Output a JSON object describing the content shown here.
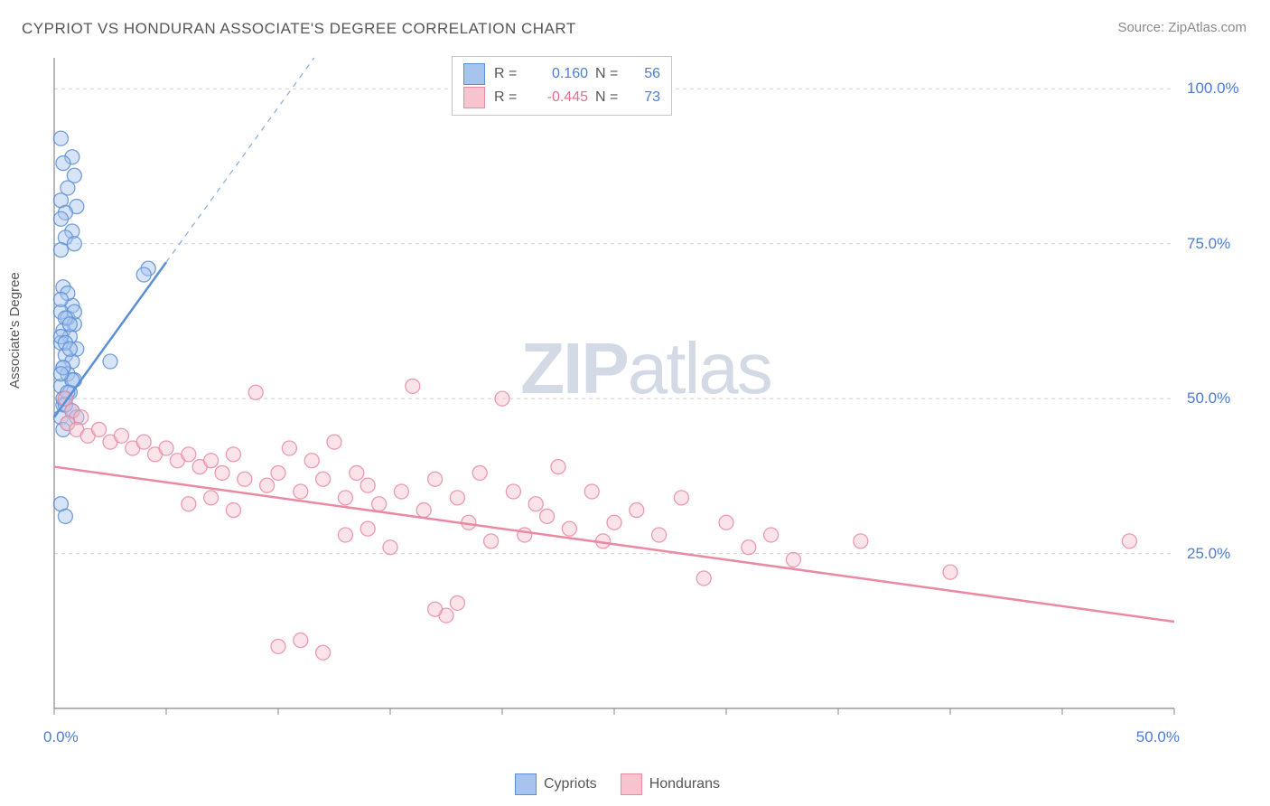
{
  "title": "CYPRIOT VS HONDURAN ASSOCIATE'S DEGREE CORRELATION CHART",
  "source": "Source: ZipAtlas.com",
  "ylabel": "Associate's Degree",
  "watermark_bold": "ZIP",
  "watermark_rest": "atlas",
  "chart": {
    "type": "scatter",
    "xlim": [
      0,
      50
    ],
    "ylim": [
      0,
      105
    ],
    "x_ticks": [
      0,
      5,
      10,
      15,
      20,
      25,
      30,
      35,
      40,
      45,
      50
    ],
    "x_tick_labels": {
      "0": "0.0%",
      "50": "50.0%"
    },
    "y_gridlines": [
      25,
      50,
      75,
      100
    ],
    "y_tick_labels": {
      "25": "25.0%",
      "50": "50.0%",
      "75": "75.0%",
      "100": "100.0%"
    },
    "grid_color": "#d0d0d0",
    "axis_color": "#888888",
    "tick_label_color": "#4a7cd8",
    "background_color": "#ffffff",
    "marker_radius": 8,
    "marker_opacity": 0.45,
    "series": [
      {
        "name": "Cypriots",
        "color_fill": "#a7c4ee",
        "color_stroke": "#5b8fd6",
        "R": "0.160",
        "N": "56",
        "trend": {
          "x1": 0,
          "y1": 47,
          "x2": 5,
          "y2": 72,
          "dashed_extend_to_x": 16,
          "dashed_extend_to_y": 127
        },
        "points": [
          [
            0.3,
            92
          ],
          [
            0.8,
            89
          ],
          [
            0.4,
            88
          ],
          [
            0.9,
            86
          ],
          [
            0.6,
            84
          ],
          [
            0.3,
            82
          ],
          [
            1.0,
            81
          ],
          [
            0.5,
            80
          ],
          [
            0.3,
            79
          ],
          [
            0.8,
            77
          ],
          [
            0.5,
            76
          ],
          [
            0.9,
            75
          ],
          [
            0.3,
            74
          ],
          [
            4.2,
            71
          ],
          [
            4.0,
            70
          ],
          [
            0.4,
            68
          ],
          [
            0.8,
            65
          ],
          [
            0.3,
            64
          ],
          [
            0.6,
            63
          ],
          [
            0.9,
            62
          ],
          [
            0.4,
            61
          ],
          [
            0.7,
            60
          ],
          [
            0.3,
            59
          ],
          [
            1.0,
            58
          ],
          [
            0.5,
            57
          ],
          [
            0.8,
            56
          ],
          [
            2.5,
            56
          ],
          [
            0.4,
            55
          ],
          [
            0.6,
            54
          ],
          [
            0.9,
            53
          ],
          [
            0.3,
            52
          ],
          [
            0.7,
            51
          ],
          [
            0.5,
            50
          ],
          [
            0.4,
            49
          ],
          [
            0.8,
            48
          ],
          [
            0.3,
            47
          ],
          [
            0.6,
            46
          ],
          [
            0.4,
            45
          ],
          [
            0.3,
            60
          ],
          [
            0.5,
            59
          ],
          [
            0.7,
            58
          ],
          [
            0.3,
            33
          ],
          [
            0.5,
            31
          ],
          [
            0.8,
            48
          ],
          [
            1.0,
            47
          ],
          [
            0.4,
            50
          ],
          [
            0.6,
            67
          ],
          [
            0.3,
            66
          ],
          [
            0.9,
            64
          ],
          [
            0.5,
            63
          ],
          [
            0.7,
            62
          ],
          [
            0.4,
            55
          ],
          [
            0.8,
            53
          ],
          [
            0.3,
            54
          ],
          [
            0.6,
            51
          ],
          [
            0.5,
            49
          ]
        ]
      },
      {
        "name": "Hondurans",
        "color_fill": "#f6c3cf",
        "color_stroke": "#e98aa2",
        "R": "-0.445",
        "N": "73",
        "trend": {
          "x1": 0,
          "y1": 39,
          "x2": 50,
          "y2": 14
        },
        "points": [
          [
            0.5,
            50
          ],
          [
            0.8,
            48
          ],
          [
            1.2,
            47
          ],
          [
            0.6,
            46
          ],
          [
            1.0,
            45
          ],
          [
            1.5,
            44
          ],
          [
            2.0,
            45
          ],
          [
            2.5,
            43
          ],
          [
            3.0,
            44
          ],
          [
            3.5,
            42
          ],
          [
            4.0,
            43
          ],
          [
            4.5,
            41
          ],
          [
            5.0,
            42
          ],
          [
            5.5,
            40
          ],
          [
            6.0,
            41
          ],
          [
            6.5,
            39
          ],
          [
            7.0,
            40
          ],
          [
            7.5,
            38
          ],
          [
            8.0,
            41
          ],
          [
            8.5,
            37
          ],
          [
            9.0,
            51
          ],
          [
            9.5,
            36
          ],
          [
            10.0,
            38
          ],
          [
            10.5,
            42
          ],
          [
            11.0,
            35
          ],
          [
            11.5,
            40
          ],
          [
            12.0,
            37
          ],
          [
            12.5,
            43
          ],
          [
            13.0,
            34
          ],
          [
            13.5,
            38
          ],
          [
            14.0,
            36
          ],
          [
            14.5,
            33
          ],
          [
            15.0,
            26
          ],
          [
            15.5,
            35
          ],
          [
            16.0,
            52
          ],
          [
            16.5,
            32
          ],
          [
            17.0,
            37
          ],
          [
            17.5,
            15
          ],
          [
            18.0,
            34
          ],
          [
            18.5,
            30
          ],
          [
            19.0,
            38
          ],
          [
            19.5,
            27
          ],
          [
            20.0,
            50
          ],
          [
            20.5,
            35
          ],
          [
            21.0,
            28
          ],
          [
            21.5,
            33
          ],
          [
            22.0,
            31
          ],
          [
            22.5,
            39
          ],
          [
            23.0,
            29
          ],
          [
            24.0,
            35
          ],
          [
            24.5,
            27
          ],
          [
            25.0,
            30
          ],
          [
            26.0,
            32
          ],
          [
            27.0,
            28
          ],
          [
            28.0,
            34
          ],
          [
            29.0,
            21
          ],
          [
            30.0,
            30
          ],
          [
            31.0,
            26
          ],
          [
            32.0,
            28
          ],
          [
            33.0,
            24
          ],
          [
            36.0,
            27
          ],
          [
            40.0,
            22
          ],
          [
            48.0,
            27
          ],
          [
            10.0,
            10
          ],
          [
            11.0,
            11
          ],
          [
            12.0,
            9
          ],
          [
            17.0,
            16
          ],
          [
            18.0,
            17
          ],
          [
            6.0,
            33
          ],
          [
            7.0,
            34
          ],
          [
            8.0,
            32
          ],
          [
            13.0,
            28
          ],
          [
            14.0,
            29
          ]
        ]
      }
    ]
  },
  "top_legend": {
    "rows": [
      {
        "swatch_fill": "#a7c4ee",
        "swatch_stroke": "#5b8fd6",
        "R_label": "R =",
        "R_val": "0.160",
        "R_color": "#4a7cd8",
        "N_label": "N =",
        "N_val": "56",
        "N_color": "#4a7cd8"
      },
      {
        "swatch_fill": "#f6c3cf",
        "swatch_stroke": "#e98aa2",
        "R_label": "R =",
        "R_val": "-0.445",
        "R_color": "#e36f8c",
        "N_label": "N =",
        "N_val": "73",
        "N_color": "#4a7cd8"
      }
    ]
  },
  "bottom_legend": {
    "items": [
      {
        "swatch_fill": "#a7c4ee",
        "swatch_stroke": "#5b8fd6",
        "label": "Cypriots"
      },
      {
        "swatch_fill": "#f6c3cf",
        "swatch_stroke": "#e98aa2",
        "label": "Hondurans"
      }
    ]
  }
}
